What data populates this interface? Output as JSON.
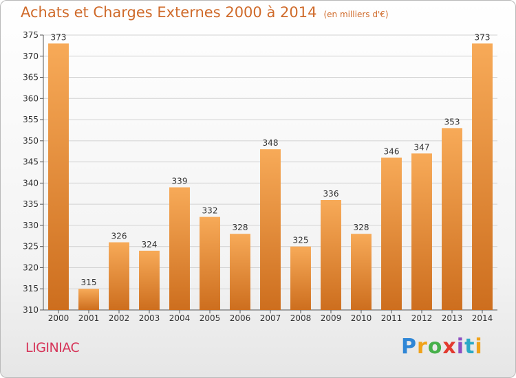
{
  "title": "Achats et Charges Externes 2000 à 2014",
  "subtitle": "(en milliers d'€)",
  "commune": "LIGINIAC",
  "logo": {
    "text": "Proxiti",
    "letters": [
      "P",
      "r",
      "o",
      "x",
      "i",
      "t",
      "i"
    ]
  },
  "colors": {
    "bar_light": "#f5a552",
    "bar_dark": "#cf7020",
    "title": "#cf6a2a",
    "commune": "#d6365a"
  },
  "chart_data": {
    "type": "bar",
    "categories": [
      "2000",
      "2001",
      "2002",
      "2003",
      "2004",
      "2005",
      "2006",
      "2007",
      "2008",
      "2009",
      "2010",
      "2011",
      "2012",
      "2013",
      "2014"
    ],
    "values": [
      373,
      315,
      326,
      324,
      339,
      332,
      328,
      348,
      325,
      336,
      328,
      346,
      347,
      353,
      373
    ],
    "data_labels": [
      "373",
      "315",
      "326",
      "324",
      "339",
      "332",
      "328",
      "348",
      "325",
      "336",
      "328",
      "346",
      "347",
      "353",
      "373"
    ],
    "yticks": [
      "310",
      "315",
      "320",
      "325",
      "330",
      "335",
      "340",
      "345",
      "350",
      "355",
      "360",
      "365",
      "370",
      "375"
    ],
    "ylim": [
      310,
      375
    ],
    "grid": true,
    "legend": "none"
  }
}
